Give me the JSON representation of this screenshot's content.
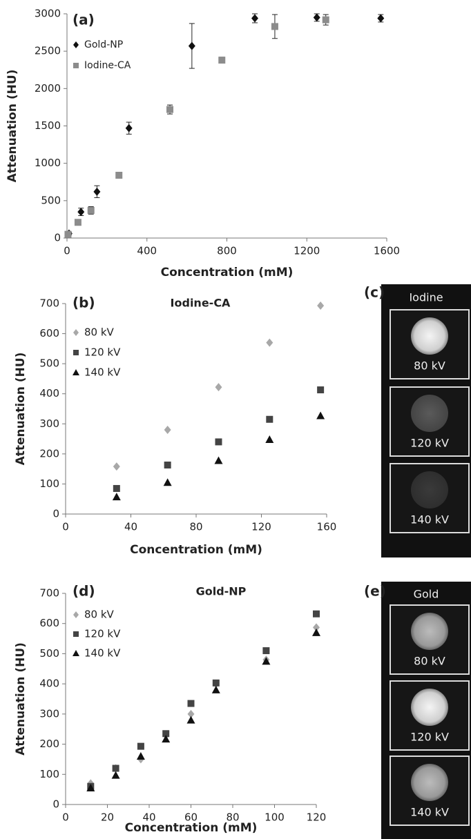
{
  "chart_data": [
    {
      "type": "scatter",
      "annotation": "(a)",
      "xlabel": "Concentration (mM)",
      "ylabel": "Attenuation (HU)",
      "xlim": [
        0,
        1600
      ],
      "xticks": [
        0,
        400,
        800,
        1200,
        1600
      ],
      "ylim": [
        0,
        3000
      ],
      "yticks": [
        0,
        500,
        1000,
        1500,
        2000,
        2500,
        3000
      ],
      "legend": "upper left",
      "series": [
        {
          "name": "Gold-NP",
          "color": "#111111",
          "marker": "diamond",
          "x": [
            10,
            70,
            150,
            310,
            625,
            940,
            1250,
            1570
          ],
          "values": [
            60,
            350,
            620,
            1470,
            2570,
            2940,
            2950,
            2940
          ],
          "errors": [
            20,
            50,
            80,
            80,
            300,
            60,
            50,
            50
          ]
        },
        {
          "name": "Iodine-CA",
          "color": "#8c8c8c",
          "marker": "square",
          "x": [
            5,
            55,
            120,
            260,
            515,
            775,
            1040,
            1295
          ],
          "values": [
            50,
            210,
            370,
            840,
            1720,
            2380,
            2830,
            2920
          ],
          "errors": [
            20,
            20,
            50,
            20,
            60,
            40,
            160,
            70
          ]
        }
      ]
    },
    {
      "type": "scatter",
      "annotation": "(b)",
      "title": "Iodine-CA",
      "xlabel": "Concentration (mM)",
      "ylabel": "Attenuation (HU)",
      "xlim": [
        0,
        160
      ],
      "xticks": [
        0,
        40,
        80,
        120,
        160
      ],
      "ylim": [
        0,
        700
      ],
      "yticks": [
        0,
        100,
        200,
        300,
        400,
        500,
        600,
        700
      ],
      "legend": "upper left",
      "x": [
        31.25,
        62.5,
        93.75,
        125,
        156.25
      ],
      "series": [
        {
          "name": "80 kV",
          "color": "#a8a8a8",
          "marker": "diamond",
          "values": [
            158,
            280,
            422,
            570,
            693
          ]
        },
        {
          "name": "120 kV",
          "color": "#444444",
          "marker": "square",
          "values": [
            85,
            163,
            240,
            315,
            413
          ]
        },
        {
          "name": "140 kV",
          "color": "#111111",
          "marker": "triangle",
          "values": [
            57,
            105,
            178,
            248,
            327
          ]
        }
      ]
    },
    {
      "type": "scatter",
      "annotation": "(d)",
      "title": "Gold-NP",
      "xlabel": "Concentration (mM)",
      "ylabel": "Attenuation (HU)",
      "xlim": [
        0,
        120
      ],
      "xticks": [
        0,
        20,
        40,
        60,
        80,
        100,
        120
      ],
      "ylim": [
        0,
        700
      ],
      "yticks": [
        0,
        100,
        200,
        300,
        400,
        500,
        600,
        700
      ],
      "legend": "upper left",
      "x": [
        12,
        24,
        36,
        48,
        60,
        72,
        96,
        120
      ],
      "series": [
        {
          "name": "80 kV",
          "color": "#a8a8a8",
          "marker": "diamond",
          "values": [
            70,
            120,
            150,
            230,
            300,
            400,
            480,
            587
          ]
        },
        {
          "name": "120 kV",
          "color": "#444444",
          "marker": "square",
          "values": [
            60,
            120,
            193,
            235,
            335,
            403,
            510,
            632
          ]
        },
        {
          "name": "140 kV",
          "color": "#111111",
          "marker": "triangle",
          "values": [
            55,
            97,
            160,
            217,
            280,
            380,
            475,
            570
          ]
        }
      ]
    }
  ],
  "panels": [
    {
      "label": "(c)",
      "header": "Iodine",
      "tiles": [
        "80 kV",
        "120 kV",
        "140 kV"
      ]
    },
    {
      "label": "(e)",
      "header": "Gold",
      "tiles": [
        "80 kV",
        "120 kV",
        "140 kV"
      ]
    }
  ]
}
